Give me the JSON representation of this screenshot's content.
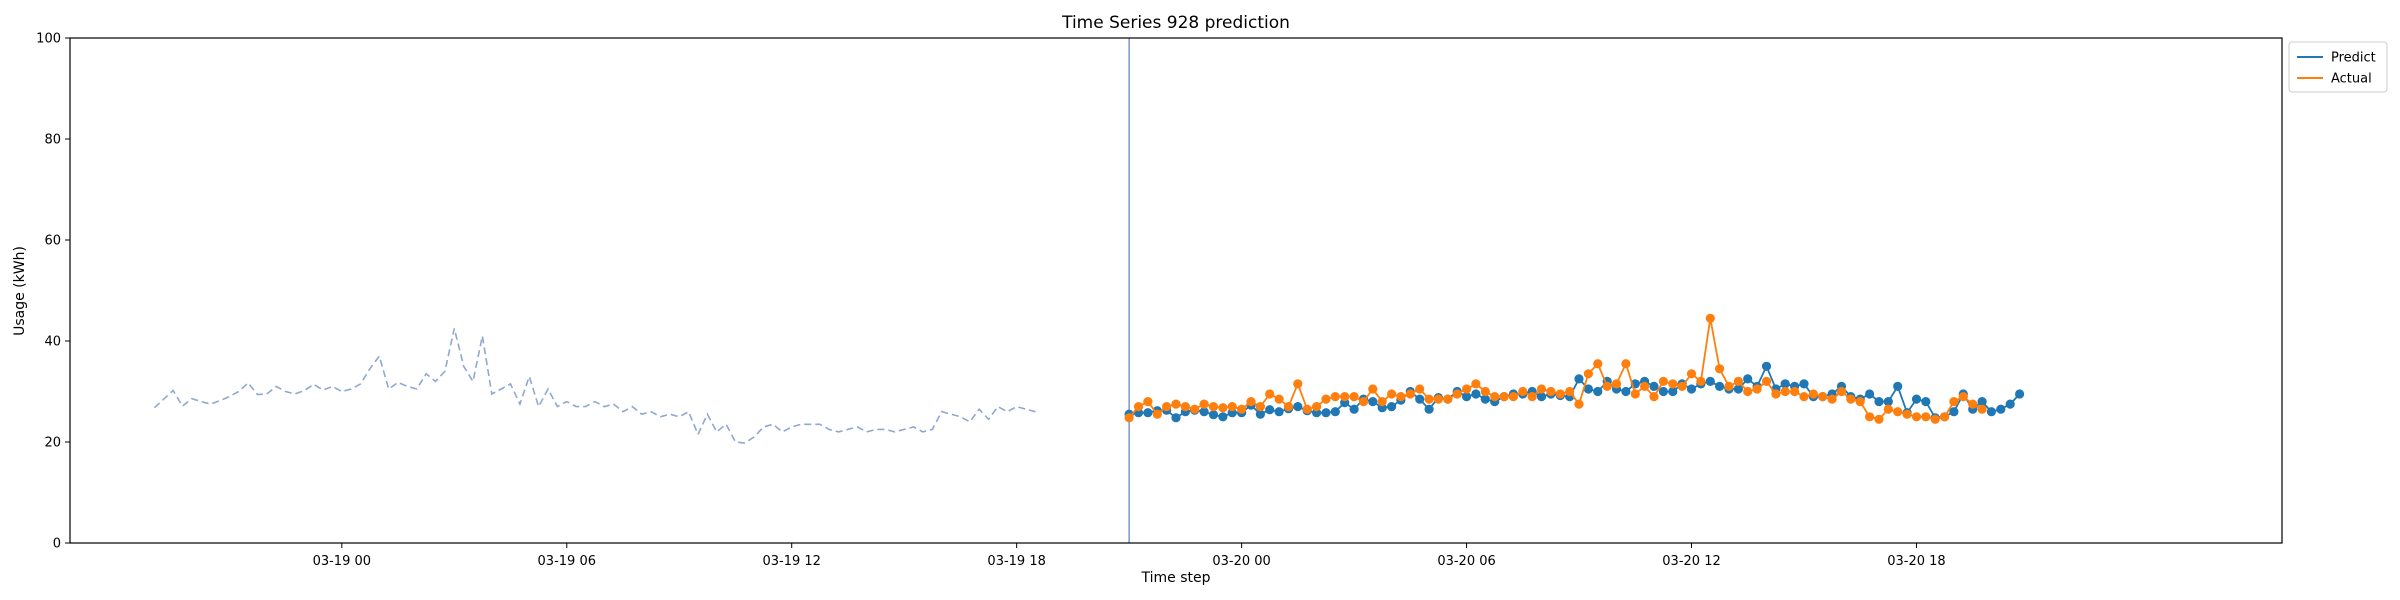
{
  "chart_data": {
    "type": "line",
    "title": "Time Series 928 prediction",
    "xlabel": "Time step",
    "ylabel": "Usage (kWh)",
    "ylim": [
      0,
      100
    ],
    "yticks": [
      0,
      20,
      40,
      60,
      80,
      100
    ],
    "xlim": [
      "2024-03-18 16:45",
      "2024-03-21 03:45"
    ],
    "xticks": [
      {
        "t": "2024-03-19 00:00",
        "label": "03-19 00"
      },
      {
        "t": "2024-03-19 06:00",
        "label": "03-19 06"
      },
      {
        "t": "2024-03-19 12:00",
        "label": "03-19 12"
      },
      {
        "t": "2024-03-19 18:00",
        "label": "03-19 18"
      },
      {
        "t": "2024-03-20 00:00",
        "label": "03-20 00"
      },
      {
        "t": "2024-03-20 06:00",
        "label": "03-20 06"
      },
      {
        "t": "2024-03-20 12:00",
        "label": "03-20 12"
      },
      {
        "t": "2024-03-20 18:00",
        "label": "03-20 18"
      }
    ],
    "grid": false,
    "legend": {
      "placement": "upper-right-outside",
      "entries": [
        {
          "name": "Predict",
          "color": "#1f77b4"
        },
        {
          "name": "Actual",
          "color": "#ff7f0e"
        }
      ]
    },
    "forecast_start": "2024-03-19 21:00",
    "history": {
      "start": "2024-03-18 19:00",
      "step_minutes": 15,
      "color": "#8fa8d0",
      "style": "dashed",
      "values": [
        26.8,
        28.5,
        30.2,
        27.1,
        28.6,
        28.0,
        27.5,
        28.2,
        29.0,
        30.0,
        31.7,
        29.4,
        29.5,
        31.0,
        30.0,
        29.5,
        30.2,
        31.4,
        30.3,
        31.0,
        30.0,
        30.5,
        31.5,
        34.5,
        37.0,
        30.5,
        31.8,
        31.0,
        30.5,
        33.5,
        32.0,
        34.0,
        42.5,
        35.0,
        32.0,
        41.0,
        29.5,
        30.5,
        31.5,
        27.5,
        33.0,
        27.0,
        30.5,
        27.0,
        28.0,
        27.0,
        27.0,
        28.0,
        27.0,
        27.5,
        26.0,
        27.0,
        25.5,
        26.0,
        25.0,
        25.5,
        25.0,
        26.0,
        21.5,
        25.5,
        22.0,
        23.5,
        20.0,
        19.8,
        21.0,
        23.0,
        23.5,
        22.0,
        23.0,
        23.5,
        23.5,
        23.5,
        22.5,
        22.0,
        22.5,
        23.0,
        22.0,
        22.5,
        22.5,
        22.0,
        22.5,
        23.0,
        22.0,
        22.5,
        26.0,
        25.5,
        25.0,
        24.0,
        26.5,
        24.5,
        27.0,
        26.0,
        27.0,
        26.5,
        26.0
      ]
    },
    "series": [
      {
        "name": "Predict",
        "color": "#1f77b4",
        "start": "2024-03-19 21:00",
        "step_minutes": 15,
        "values": [
          25.5,
          25.8,
          25.8,
          26.2,
          26.3,
          24.8,
          26.0,
          26.3,
          26.0,
          25.4,
          25.0,
          25.8,
          25.8,
          27.3,
          25.5,
          26.4,
          26.0,
          26.6,
          27.0,
          26.2,
          25.8,
          25.8,
          26.0,
          27.8,
          26.5,
          28.5,
          28.0,
          26.8,
          27.0,
          28.3,
          30.0,
          28.5,
          26.5,
          28.8,
          28.5,
          30.0,
          29.0,
          29.5,
          28.5,
          28.0,
          29.0,
          29.5,
          29.5,
          30.0,
          29.0,
          29.5,
          29.2,
          29.0,
          32.5,
          30.5,
          30.0,
          32.0,
          30.5,
          30.0,
          31.5,
          32.0,
          31.0,
          30.0,
          30.0,
          31.5,
          30.5,
          31.5,
          32.0,
          31.0,
          30.5,
          30.5,
          32.5,
          31.0,
          35.0,
          30.5,
          31.5,
          31.0,
          31.5,
          29.0,
          29.0,
          29.5,
          31.0,
          29.0,
          28.5,
          29.5,
          28.0,
          28.0,
          31.0,
          25.8,
          28.5,
          28.0,
          24.8,
          25.0,
          26.0,
          29.5,
          26.5,
          28.0,
          26.0,
          26.5,
          27.5,
          29.5
        ]
      },
      {
        "name": "Actual",
        "color": "#ff7f0e",
        "start": "2024-03-19 21:00",
        "step_minutes": 15,
        "values": [
          24.8,
          27.0,
          28.0,
          25.5,
          27.0,
          27.5,
          27.0,
          26.5,
          27.5,
          27.0,
          26.8,
          27.0,
          26.5,
          28.0,
          27.0,
          29.5,
          28.5,
          27.0,
          31.5,
          26.5,
          27.0,
          28.5,
          29.0,
          29.0,
          29.0,
          28.0,
          30.5,
          28.0,
          29.5,
          29.0,
          29.5,
          30.5,
          28.5,
          28.5,
          28.5,
          29.5,
          30.5,
          31.5,
          30.0,
          29.0,
          29.0,
          29.0,
          30.0,
          29.0,
          30.5,
          30.0,
          29.5,
          30.0,
          27.5,
          33.5,
          35.5,
          31.0,
          31.5,
          35.5,
          29.5,
          31.0,
          29.0,
          32.0,
          31.5,
          31.0,
          33.5,
          32.0,
          44.5,
          34.5,
          31.0,
          32.0,
          30.0,
          30.5,
          32.0,
          29.5,
          30.0,
          30.0,
          29.0,
          29.5,
          29.0,
          28.5,
          30.0,
          28.5,
          28.0,
          25.0,
          24.5,
          26.5,
          26.0,
          25.5,
          25.0,
          25.0,
          24.5,
          25.0,
          28.0,
          29.0,
          27.5,
          26.5
        ]
      }
    ]
  }
}
